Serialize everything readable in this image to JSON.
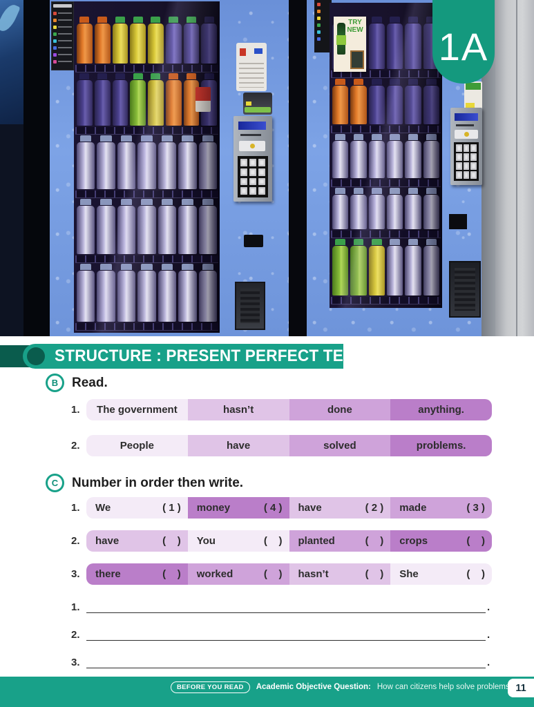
{
  "unit_tab": "1A",
  "photo": {
    "try_new_poster": "TRY NEW"
  },
  "banner": {
    "title": "STRUCTURE : PRESENT PERFECT TENSE"
  },
  "exercise_b": {
    "marker": "B",
    "instruction": "Read.",
    "rows": [
      {
        "num": "1.",
        "cells": [
          "The government",
          "hasn’t",
          "done",
          "anything."
        ]
      },
      {
        "num": "2.",
        "cells": [
          "People",
          "have",
          "solved",
          "problems."
        ]
      }
    ]
  },
  "exercise_c": {
    "marker": "C",
    "instruction": "Number in order then write.",
    "rows": [
      {
        "num": "1.",
        "cells": [
          {
            "word": "We",
            "answer": "1",
            "shade": 1
          },
          {
            "word": "money",
            "answer": "4",
            "shade": 4
          },
          {
            "word": "have",
            "answer": "2",
            "shade": 2
          },
          {
            "word": "made",
            "answer": "3",
            "shade": 3
          }
        ]
      },
      {
        "num": "2.",
        "cells": [
          {
            "word": "have",
            "answer": "",
            "shade": 2
          },
          {
            "word": "You",
            "answer": "",
            "shade": 1
          },
          {
            "word": "planted",
            "answer": "",
            "shade": 3
          },
          {
            "word": "crops",
            "answer": "",
            "shade": 4
          }
        ]
      },
      {
        "num": "3.",
        "cells": [
          {
            "word": "there",
            "answer": "",
            "shade": 4
          },
          {
            "word": "worked",
            "answer": "",
            "shade": 3
          },
          {
            "word": "hasn’t",
            "answer": "",
            "shade": 2
          },
          {
            "word": "She",
            "answer": "",
            "shade": 1
          }
        ]
      }
    ],
    "write_lines": [
      "1.",
      "2.",
      "3."
    ]
  },
  "footer": {
    "badge": "BEFORE YOU READ",
    "label": "Academic Objective Question:",
    "question": "How can citizens help solve problems in society?",
    "page_number": "11"
  },
  "colors": {
    "green": "#18a189",
    "green_dark": "#0a5c4d",
    "cell_shades": [
      "#f4ebf7",
      "#e0c4e7",
      "#cfa3da",
      "#ba7ec9"
    ]
  }
}
